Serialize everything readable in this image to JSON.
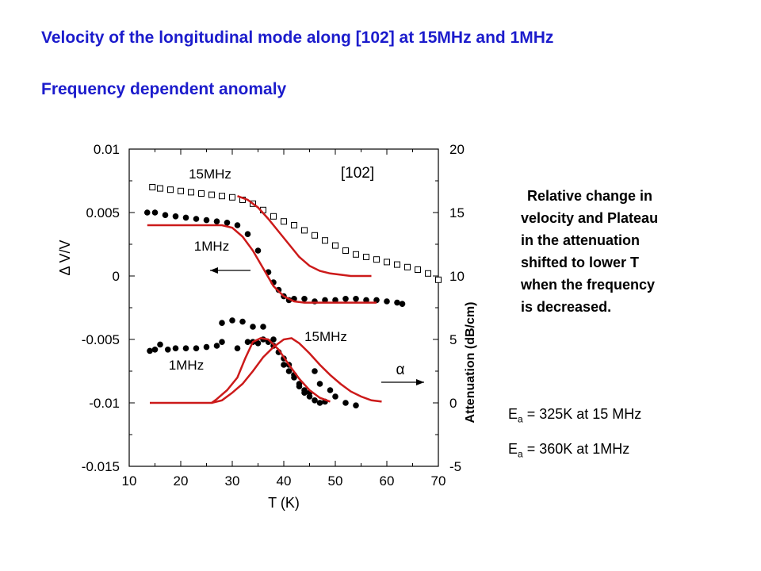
{
  "header": {
    "title1": "Velocity of the longitudinal mode along [102] at 15MHz and 1MHz",
    "title2": "Frequency dependent anomaly"
  },
  "note": {
    "lines": [
      "Relative change in",
      "velocity and Plateau",
      "in the attenuation",
      "shifted to lower T",
      "when the  frequency",
      "is decreased."
    ]
  },
  "activation": [
    {
      "symbol": "E",
      "sub": "a",
      "text": " = 325K at 15 MHz"
    },
    {
      "symbol": "E",
      "sub": "a",
      "text": " = 360K at 1MHz"
    }
  ],
  "colors": {
    "title": "#1c1ccc",
    "fit": "#cc1a1a",
    "data": "#000000"
  },
  "chart_data": {
    "type": "scatter",
    "xlabel": "T  (K)",
    "ylabel_left": "Δ V/V",
    "ylabel_right": "Attenuation  (dB/cm)",
    "xlim": [
      10,
      70
    ],
    "ylim_left": [
      -0.015,
      0.01
    ],
    "ylim_right": [
      -5,
      20
    ],
    "x_ticks": [
      "10",
      "20",
      "30",
      "40",
      "50",
      "60",
      "70"
    ],
    "y_ticks_left": [
      "0.01",
      "0.005",
      "0",
      "-0.005",
      "-0.01",
      "-0.015"
    ],
    "y_ticks_right": [
      "20",
      "15",
      "10",
      "5",
      "0",
      "-5"
    ],
    "annotations": {
      "label_15MHz_top": "15MHz",
      "label_direction": "[102]",
      "label_1MHz_mid": "1MHz",
      "label_15MHz_low": "15MHz",
      "label_1MHz_low": "1MHz",
      "label_alpha": "α"
    },
    "series": [
      {
        "name": "15MHz",
        "axis": "left",
        "marker": "open-square",
        "points": [
          [
            14.5,
            0.007
          ],
          [
            16,
            0.0069
          ],
          [
            18,
            0.0068
          ],
          [
            20,
            0.0067
          ],
          [
            22,
            0.0066
          ],
          [
            24,
            0.0065
          ],
          [
            26,
            0.0064
          ],
          [
            28,
            0.0063
          ],
          [
            30,
            0.0062
          ],
          [
            32,
            0.006
          ],
          [
            34,
            0.0057
          ],
          [
            36,
            0.0052
          ],
          [
            38,
            0.0047
          ],
          [
            40,
            0.0043
          ],
          [
            42,
            0.004
          ],
          [
            44,
            0.0036
          ],
          [
            46,
            0.0032
          ],
          [
            48,
            0.0028
          ],
          [
            50,
            0.0024
          ],
          [
            52,
            0.002
          ],
          [
            54,
            0.0017
          ],
          [
            56,
            0.0015
          ],
          [
            58,
            0.0013
          ],
          [
            60,
            0.0011
          ],
          [
            62,
            0.0009
          ],
          [
            64,
            0.0007
          ],
          [
            66,
            0.0005
          ],
          [
            68,
            0.0002
          ],
          [
            70,
            -0.0003
          ]
        ]
      },
      {
        "name": "1MHz",
        "axis": "left",
        "marker": "filled-circle",
        "points": [
          [
            13.5,
            0.005
          ],
          [
            15,
            0.005
          ],
          [
            17,
            0.0048
          ],
          [
            19,
            0.0047
          ],
          [
            21,
            0.0046
          ],
          [
            23,
            0.0045
          ],
          [
            25,
            0.0044
          ],
          [
            27,
            0.0043
          ],
          [
            29,
            0.0042
          ],
          [
            31,
            0.004
          ],
          [
            33,
            0.0033
          ],
          [
            35,
            0.002
          ],
          [
            37,
            0.0003
          ],
          [
            38,
            -0.0005
          ],
          [
            39,
            -0.0011
          ],
          [
            40,
            -0.0016
          ],
          [
            41,
            -0.0019
          ],
          [
            42,
            -0.0018
          ],
          [
            44,
            -0.0018
          ],
          [
            46,
            -0.002
          ],
          [
            48,
            -0.0019
          ],
          [
            50,
            -0.0019
          ],
          [
            52,
            -0.0018
          ],
          [
            54,
            -0.0018
          ],
          [
            56,
            -0.0019
          ],
          [
            58,
            -0.0019
          ],
          [
            60,
            -0.002
          ],
          [
            62,
            -0.0021
          ],
          [
            63,
            -0.0022
          ]
        ]
      },
      {
        "name": "15MHz",
        "axis": "right",
        "marker": "filled-circle",
        "points": [
          [
            28,
            6.3
          ],
          [
            30,
            6.5
          ],
          [
            32,
            6.4
          ],
          [
            34,
            6.0
          ],
          [
            36,
            6.0
          ],
          [
            38,
            5.0
          ],
          [
            39,
            4.0
          ],
          [
            40,
            3.5
          ],
          [
            41,
            3.0
          ],
          [
            42,
            2.2
          ],
          [
            43,
            1.5
          ],
          [
            44,
            1.0
          ],
          [
            45,
            0.8
          ],
          [
            46,
            2.5
          ],
          [
            47,
            1.5
          ],
          [
            49,
            1.0
          ],
          [
            50,
            0.5
          ],
          [
            52,
            0.0
          ],
          [
            54,
            -0.2
          ]
        ]
      },
      {
        "name": "1MHz",
        "axis": "right",
        "marker": "filled-circle",
        "points": [
          [
            14,
            4.1
          ],
          [
            15,
            4.2
          ],
          [
            16,
            4.6
          ],
          [
            17.5,
            4.2
          ],
          [
            19,
            4.3
          ],
          [
            21,
            4.3
          ],
          [
            23,
            4.3
          ],
          [
            25,
            4.4
          ],
          [
            27,
            4.5
          ],
          [
            28,
            4.8
          ],
          [
            31,
            4.3
          ],
          [
            33,
            4.8
          ],
          [
            34,
            4.8
          ],
          [
            35,
            4.7
          ],
          [
            36,
            5.0
          ],
          [
            37,
            4.8
          ],
          [
            38,
            4.5
          ],
          [
            39,
            4.0
          ],
          [
            40,
            3.0
          ],
          [
            41,
            2.5
          ],
          [
            42,
            2.0
          ],
          [
            43,
            1.3
          ],
          [
            44,
            0.8
          ],
          [
            45,
            0.5
          ],
          [
            46,
            0.2
          ],
          [
            47,
            0.0
          ],
          [
            48,
            0.1
          ]
        ]
      },
      {
        "name": "fit 15MHz velocity",
        "axis": "left",
        "style": "red-line",
        "points": [
          [
            31,
            0.0063
          ],
          [
            33,
            0.006
          ],
          [
            35,
            0.0054
          ],
          [
            37,
            0.0045
          ],
          [
            39,
            0.0035
          ],
          [
            41,
            0.0025
          ],
          [
            43,
            0.0015
          ],
          [
            45,
            0.0008
          ],
          [
            47,
            0.0004
          ],
          [
            49,
            0.0002
          ],
          [
            51,
            0.0001
          ],
          [
            53,
            0.0
          ],
          [
            55,
            0.0
          ],
          [
            57,
            0.0
          ]
        ]
      },
      {
        "name": "fit 1MHz velocity",
        "axis": "left",
        "style": "red-line",
        "points": [
          [
            13.5,
            0.004
          ],
          [
            18,
            0.004
          ],
          [
            22,
            0.004
          ],
          [
            26,
            0.004
          ],
          [
            28,
            0.004
          ],
          [
            30,
            0.0038
          ],
          [
            32,
            0.0031
          ],
          [
            34,
            0.002
          ],
          [
            36,
            0.0006
          ],
          [
            38,
            -0.0008
          ],
          [
            40,
            -0.0016
          ],
          [
            42,
            -0.002
          ],
          [
            44,
            -0.0021
          ],
          [
            48,
            -0.0021
          ],
          [
            52,
            -0.0021
          ],
          [
            58,
            -0.0021
          ]
        ]
      },
      {
        "name": "fit 1MHz attenuation",
        "axis": "right",
        "style": "red-line",
        "points": [
          [
            14,
            0
          ],
          [
            18,
            0
          ],
          [
            22,
            0
          ],
          [
            26,
            0
          ],
          [
            27,
            0.3
          ],
          [
            29,
            1.0
          ],
          [
            31,
            2.0
          ],
          [
            32.5,
            3.5
          ],
          [
            34,
            4.8
          ],
          [
            35.5,
            5.1
          ],
          [
            37,
            5.0
          ],
          [
            39,
            4.2
          ],
          [
            41,
            3.0
          ],
          [
            43,
            1.9
          ],
          [
            45,
            1.0
          ],
          [
            47,
            0.4
          ],
          [
            49,
            0.1
          ]
        ]
      },
      {
        "name": "fit 15MHz attenuation",
        "axis": "right",
        "style": "red-line",
        "points": [
          [
            26,
            0
          ],
          [
            28,
            0.2
          ],
          [
            30,
            0.8
          ],
          [
            32,
            1.5
          ],
          [
            34,
            2.5
          ],
          [
            36,
            3.6
          ],
          [
            38,
            4.4
          ],
          [
            40,
            5.0
          ],
          [
            41.5,
            5.1
          ],
          [
            43,
            4.7
          ],
          [
            45,
            3.9
          ],
          [
            47,
            3.0
          ],
          [
            49,
            2.2
          ],
          [
            51,
            1.5
          ],
          [
            53,
            0.9
          ],
          [
            55,
            0.5
          ],
          [
            57,
            0.2
          ],
          [
            59,
            0.1
          ]
        ]
      }
    ]
  }
}
